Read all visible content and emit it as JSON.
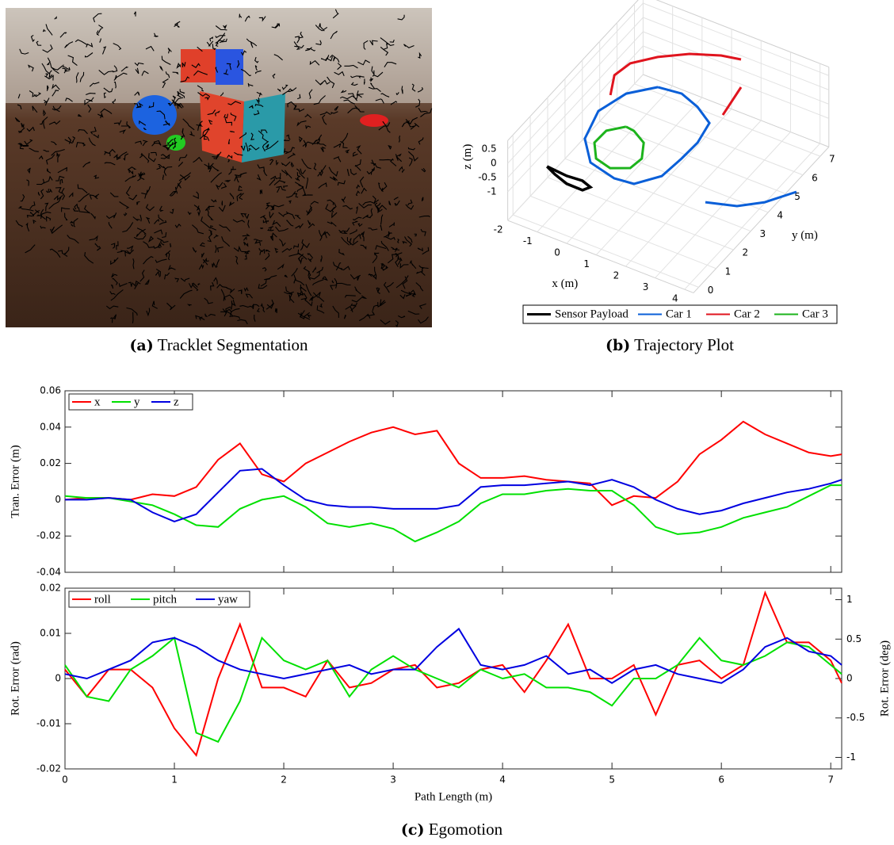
{
  "captions": [
    {
      "label": "(a)",
      "text": "Tracklet Segmentation"
    },
    {
      "label": "(b)",
      "text": "Trajectory Plot"
    },
    {
      "label": "(c)",
      "text": "Egomotion"
    }
  ],
  "chart_data": [
    {
      "type": "line3d",
      "xlabel": "x (m)",
      "ylabel": "y (m)",
      "zlabel": "z (m)",
      "xlim": [
        -2,
        4.3
      ],
      "ylim": [
        -0.3,
        7.5
      ],
      "zlim": [
        -2,
        0.8
      ],
      "xticks": [
        -2,
        -1,
        0,
        1,
        2,
        3,
        4
      ],
      "yticks": [
        0,
        1,
        2,
        3,
        4,
        5,
        6,
        7
      ],
      "zticks": [
        -1,
        -0.5,
        0,
        0.5
      ],
      "grid": true,
      "legend": "bottom",
      "series": [
        {
          "name": "Sensor Payload",
          "color": "#000000",
          "x": [
            -0.95,
            -0.57,
            -0.06,
            0.48,
            0.61,
            0.26,
            -0.24,
            -0.95
          ],
          "y": [
            0.18,
            -0.01,
            -0.2,
            -0.21,
            0.03,
            0.16,
            0.11,
            0.18
          ],
          "z": [
            0,
            0,
            0,
            0,
            0,
            0,
            0,
            0
          ]
        },
        {
          "name": "Car 1",
          "color": "#0a5fd8",
          "x": [
            -0.02,
            -0.66,
            -0.95,
            -0.65,
            0.04,
            1.0,
            1.62,
            2.13,
            2.22,
            2.25,
            2.09,
            1.42,
            0.72,
            -0.02,
            null,
            3.82,
            4.7,
            5.3,
            5.85
          ],
          "y": [
            4.99,
            4.25,
            3.14,
            1.85,
            1.0,
            0.74,
            0.83,
            1.56,
            2.55,
            3.42,
            4.37,
            4.82,
            5.1,
            4.99,
            null,
            1.2,
            1.53,
            2.11,
            3.0
          ],
          "z": [
            0,
            0,
            0,
            0,
            0,
            0,
            0,
            0,
            0,
            0,
            0,
            0,
            0,
            0,
            null,
            0,
            0,
            0,
            0
          ]
        },
        {
          "name": "Car 2",
          "color": "#e0141e",
          "x": [
            -1.02,
            -1.38,
            -1.26,
            -0.72,
            0.0,
            0.82,
            1.41,
            null,
            2.24,
            2.05
          ],
          "y": [
            3.95,
            4.79,
            5.5,
            6.17,
            6.78,
            7.2,
            7.35,
            null,
            4.89,
            6.26
          ],
          "z": [
            0,
            0,
            0,
            0,
            0,
            0,
            0,
            null,
            0,
            0
          ]
        },
        {
          "name": "Car 3",
          "color": "#1cb31c",
          "x": [
            0.1,
            -0.3,
            -0.32,
            0.09,
            0.66,
            1.16,
            1.23,
            0.91,
            0.39,
            0.1
          ],
          "y": [
            2.95,
            2.49,
            1.84,
            1.24,
            1.08,
            1.39,
            1.94,
            2.59,
            2.91,
            2.95
          ],
          "z": [
            0,
            0,
            0,
            0,
            0,
            0,
            0,
            0,
            0,
            0
          ]
        }
      ]
    },
    {
      "type": "line",
      "ylabel": "Tran. Error (m)",
      "x": [
        0,
        0.2,
        0.4,
        0.6,
        0.8,
        1,
        1.2,
        1.4,
        1.6,
        1.8,
        2,
        2.2,
        2.4,
        2.6,
        2.8,
        3,
        3.2,
        3.4,
        3.6,
        3.8,
        4,
        4.2,
        4.4,
        4.6,
        4.8,
        5,
        5.2,
        5.4,
        5.6,
        5.8,
        6,
        6.2,
        6.4,
        6.6,
        6.8,
        7,
        7.1
      ],
      "xlim": [
        0,
        7.1
      ],
      "xticks": [
        0,
        1,
        2,
        3,
        4,
        5,
        6,
        7
      ],
      "xtick_labels": false,
      "ylim": [
        -0.04,
        0.06
      ],
      "yticks": [
        -0.04,
        -0.02,
        0,
        0.02,
        0.04,
        0.06
      ],
      "legend": "top-left",
      "series": [
        {
          "name": "x",
          "color": "#ff0000",
          "values": [
            0,
            0.001,
            0.001,
            0,
            0.003,
            0.002,
            0.007,
            0.022,
            0.031,
            0.014,
            0.01,
            0.02,
            0.026,
            0.032,
            0.037,
            0.04,
            0.036,
            0.038,
            0.02,
            0.012,
            0.012,
            0.013,
            0.011,
            0.01,
            0.009,
            -0.003,
            0.002,
            0.001,
            0.01,
            0.025,
            0.033,
            0.043,
            0.036,
            0.031,
            0.026,
            0.024,
            0.025
          ]
        },
        {
          "name": "y",
          "color": "#00e000",
          "values": [
            0.002,
            0.001,
            0.001,
            -0.001,
            -0.003,
            -0.008,
            -0.014,
            -0.015,
            -0.005,
            0,
            0.002,
            -0.004,
            -0.013,
            -0.015,
            -0.013,
            -0.016,
            -0.023,
            -0.018,
            -0.012,
            -0.002,
            0.003,
            0.003,
            0.005,
            0.006,
            0.005,
            0.005,
            -0.003,
            -0.015,
            -0.019,
            -0.018,
            -0.015,
            -0.01,
            -0.007,
            -0.004,
            0.002,
            0.008,
            0.008
          ]
        },
        {
          "name": "z",
          "color": "#0000e0",
          "values": [
            0,
            0,
            0.001,
            0,
            -0.007,
            -0.012,
            -0.008,
            0.004,
            0.016,
            0.017,
            0.008,
            0,
            -0.003,
            -0.004,
            -0.004,
            -0.005,
            -0.005,
            -0.005,
            -0.003,
            0.007,
            0.008,
            0.008,
            0.009,
            0.01,
            0.008,
            0.011,
            0.007,
            0,
            -0.005,
            -0.008,
            -0.006,
            -0.002,
            0.001,
            0.004,
            0.006,
            0.009,
            0.011
          ]
        }
      ]
    },
    {
      "type": "line",
      "ylabel": "Rot. Error (rad)",
      "y2label": "Rot. Error (deg)",
      "xlabel": "Path Length (m)",
      "x": [
        0,
        0.2,
        0.4,
        0.6,
        0.8,
        1,
        1.2,
        1.4,
        1.6,
        1.8,
        2,
        2.2,
        2.4,
        2.6,
        2.8,
        3,
        3.2,
        3.4,
        3.6,
        3.8,
        4,
        4.2,
        4.4,
        4.6,
        4.8,
        5,
        5.2,
        5.4,
        5.6,
        5.8,
        6,
        6.2,
        6.4,
        6.6,
        6.8,
        7,
        7.1
      ],
      "xlim": [
        0,
        7.1
      ],
      "xticks": [
        0,
        1,
        2,
        3,
        4,
        5,
        6,
        7
      ],
      "xtick_labels": true,
      "ylim": [
        -0.02,
        0.02
      ],
      "yticks": [
        -0.02,
        -0.01,
        0,
        0.01,
        0.02
      ],
      "y2lim": [
        -1.146,
        1.146
      ],
      "y2ticks": [
        -1,
        -0.5,
        0,
        0.5,
        1
      ],
      "legend": "top-left",
      "series": [
        {
          "name": "roll",
          "color": "#ff0000",
          "values": [
            0.002,
            -0.004,
            0.002,
            0.002,
            -0.002,
            -0.011,
            -0.017,
            0,
            0.012,
            -0.002,
            -0.002,
            -0.004,
            0.004,
            -0.002,
            -0.001,
            0.002,
            0.003,
            -0.002,
            -0.001,
            0.002,
            0.003,
            -0.003,
            0.004,
            0.012,
            0,
            0,
            0.003,
            -0.008,
            0.003,
            0.004,
            0,
            0.003,
            0.019,
            0.008,
            0.008,
            0.004,
            -0.001
          ]
        },
        {
          "name": "pitch",
          "color": "#00e000",
          "values": [
            0.003,
            -0.004,
            -0.005,
            0.002,
            0.005,
            0.009,
            -0.012,
            -0.014,
            -0.005,
            0.009,
            0.004,
            0.002,
            0.004,
            -0.004,
            0.002,
            0.005,
            0.002,
            0,
            -0.002,
            0.002,
            0,
            0.001,
            -0.002,
            -0.002,
            -0.003,
            -0.006,
            0,
            0,
            0.003,
            0.009,
            0.004,
            0.003,
            0.005,
            0.008,
            0.007,
            0.003,
            0.001
          ]
        },
        {
          "name": "yaw",
          "color": "#0000e0",
          "values": [
            0.001,
            0,
            0.002,
            0.004,
            0.008,
            0.009,
            0.007,
            0.004,
            0.002,
            0.001,
            0,
            0.001,
            0.002,
            0.003,
            0.001,
            0.002,
            0.002,
            0.007,
            0.011,
            0.003,
            0.002,
            0.003,
            0.005,
            0.001,
            0.002,
            -0.001,
            0.002,
            0.003,
            0.001,
            0,
            -0.001,
            0.002,
            0.007,
            0.009,
            0.006,
            0.005,
            0.003
          ]
        }
      ]
    }
  ]
}
